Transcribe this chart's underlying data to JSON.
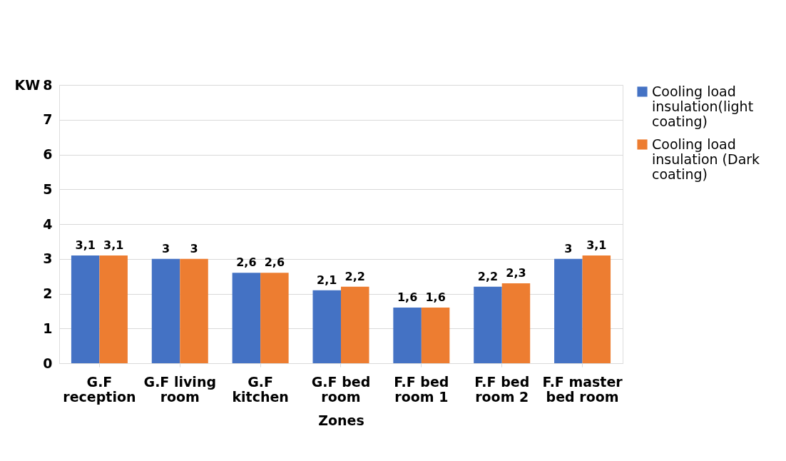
{
  "chart_data": {
    "type": "bar",
    "xlabel": "Zones",
    "ylabel": "KW",
    "categories": [
      "G.F reception",
      "G.F living room",
      "G.F kitchen",
      "G.F bed room",
      "F.F bed room 1",
      "F.F bed room 2",
      "F.F master bed room"
    ],
    "series": [
      {
        "name": "Cooling load insulation(light coating)",
        "color": "#4472c4",
        "values": [
          3.1,
          3,
          2.6,
          2.1,
          1.6,
          2.2,
          3
        ],
        "value_labels": [
          "3,1",
          "3",
          "2,6",
          "2,1",
          "1,6",
          "2,2",
          "3"
        ]
      },
      {
        "name": "Cooling load insulation (Dark coating)",
        "color": "#ed7d31",
        "values": [
          3.1,
          3,
          2.6,
          2.2,
          1.6,
          2.3,
          3.1
        ],
        "value_labels": [
          "3,1",
          "3",
          "2,6",
          "2,2",
          "1,6",
          "2,3",
          "3,1"
        ]
      }
    ],
    "ylim": [
      0,
      8
    ],
    "yticks": [
      0,
      1,
      2,
      3,
      4,
      5,
      6,
      7,
      8
    ],
    "grid": "y",
    "legend": "right"
  }
}
